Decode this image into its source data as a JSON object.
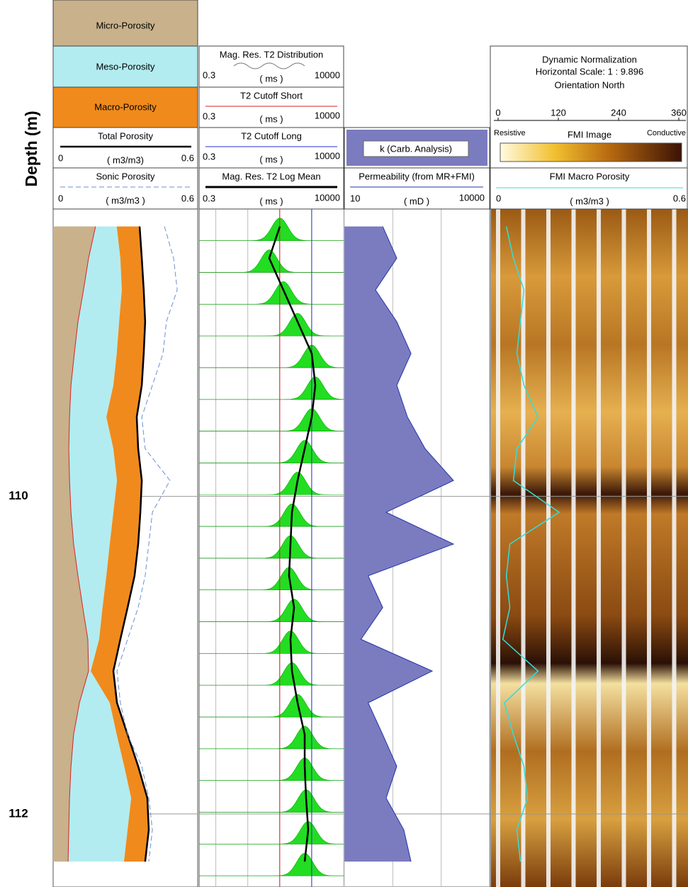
{
  "chart_data": {
    "type": "well_log",
    "ylabel": "Depth (m)",
    "ylim": [
      108.19,
      112.46
    ],
    "yticks": [
      110,
      112
    ],
    "depths": [
      108.3,
      108.5,
      108.7,
      108.9,
      109.1,
      109.3,
      109.5,
      109.7,
      109.9,
      110.1,
      110.3,
      110.5,
      110.7,
      110.9,
      111.1,
      111.3,
      111.5,
      111.7,
      111.9,
      112.1,
      112.3
    ],
    "tracks": [
      {
        "series": [
          {
            "name": "Micro-Porosity",
            "color": "#c8b18b",
            "values": [
              0.176,
              0.147,
              0.126,
              0.103,
              0.088,
              0.074,
              0.068,
              0.065,
              0.068,
              0.074,
              0.085,
              0.103,
              0.123,
              0.144,
              0.147,
              0.109,
              0.085,
              0.074,
              0.068,
              0.065,
              0.062
            ]
          },
          {
            "name": "Meso-Porosity",
            "color": "#b2ecf0",
            "values": [
              0.088,
              0.132,
              0.159,
              0.171,
              0.176,
              0.176,
              0.153,
              0.185,
              0.197,
              0.176,
              0.15,
              0.118,
              0.082,
              0.047,
              0.009,
              0.126,
              0.179,
              0.221,
              0.256,
              0.244,
              0.232
            ]
          },
          {
            "name": "Macro-Porosity",
            "color": "#f08a1c",
            "values": [
              0.094,
              0.088,
              0.091,
              0.109,
              0.112,
              0.118,
              0.126,
              0.103,
              0.103,
              0.112,
              0.118,
              0.118,
              0.103,
              0.088,
              0.094,
              0.029,
              0.044,
              0.059,
              0.068,
              0.088,
              0.088
            ]
          },
          {
            "name": "Total Porosity",
            "color": "#000000",
            "unit": "( m3/m3)",
            "xlim": [
              0,
              0.6
            ],
            "values": [
              0.359,
              0.368,
              0.376,
              0.382,
              0.376,
              0.368,
              0.347,
              0.353,
              0.368,
              0.362,
              0.353,
              0.338,
              0.309,
              0.279,
              0.25,
              0.265,
              0.309,
              0.353,
              0.391,
              0.397,
              0.382
            ]
          },
          {
            "name": "Sonic Porosity",
            "color": "#6b8fd0",
            "unit": "( m3/m3 )",
            "xlim": [
              0,
              0.6
            ],
            "values": [
              0.462,
              0.5,
              0.515,
              0.47,
              0.456,
              0.412,
              0.368,
              0.382,
              0.485,
              0.412,
              0.397,
              0.382,
              0.353,
              0.309,
              0.265,
              0.279,
              0.309,
              0.368,
              0.397,
              0.412,
              0.397
            ]
          }
        ]
      },
      {
        "series": [
          {
            "name": "Mag. Res. T2 Distribution",
            "color": "#22dd22",
            "unit": "( ms )",
            "xlim": [
              0.3,
              10000
            ]
          },
          {
            "name": "T2 Cutoff Short",
            "color": "#dd2222",
            "unit": "( ms )",
            "xlim": [
              0.3,
              10000
            ],
            "value": 100
          },
          {
            "name": "T2 Cutoff Long",
            "color": "#2233cc",
            "unit": "( ms )",
            "xlim": [
              0.3,
              10000
            ],
            "value": 1000
          },
          {
            "name": "Mag. Res. T2 Log Mean",
            "color": "#000000",
            "unit": "( ms )",
            "xlim": [
              0.3,
              10000
            ],
            "values": [
              101,
              47,
              130,
              362,
              1005,
              1297,
              1005,
              604,
              362,
              241,
              217,
              196,
              281,
              217,
              241,
              362,
              604,
              604,
              668,
              778,
              604
            ]
          }
        ]
      },
      {
        "series": [
          {
            "name": "Permeability (from MR+FMI)",
            "color": "#2233aa",
            "fill": "#7b7bc0",
            "fill_name": "k (Carb. Analysis)",
            "unit": "( mD )",
            "xlim": [
              10,
              10000
            ],
            "values": [
              62,
              121,
              44,
              121,
              238,
              121,
              201,
              466,
              1794,
              73,
              1794,
              31,
              62,
              22,
              653,
              31,
              62,
              121,
              73,
              169,
              238
            ]
          }
        ]
      },
      {
        "image_title": [
          "Dynamic Normalization",
          "Horizontal Scale: 1 : 9.896",
          "Orientation North"
        ],
        "azimuth_lim": [
          0,
          360
        ],
        "azimuth_ticks": [
          0,
          120,
          240,
          360
        ],
        "colorbar": {
          "low": "Resistive",
          "title": "FMI  Image",
          "high": "Conductive"
        },
        "series": [
          {
            "name": "FMI Macro Porosity",
            "color": "#33dddd",
            "unit": "( m3/m3 )",
            "xlim": [
              0,
              0.6
            ],
            "values": [
              0.039,
              0.061,
              0.094,
              0.083,
              0.072,
              0.094,
              0.138,
              0.072,
              0.061,
              0.204,
              0.05,
              0.039,
              0.05,
              0.028,
              0.138,
              0.033,
              0.061,
              0.094,
              0.105,
              0.072,
              0.083
            ]
          }
        ]
      }
    ]
  }
}
